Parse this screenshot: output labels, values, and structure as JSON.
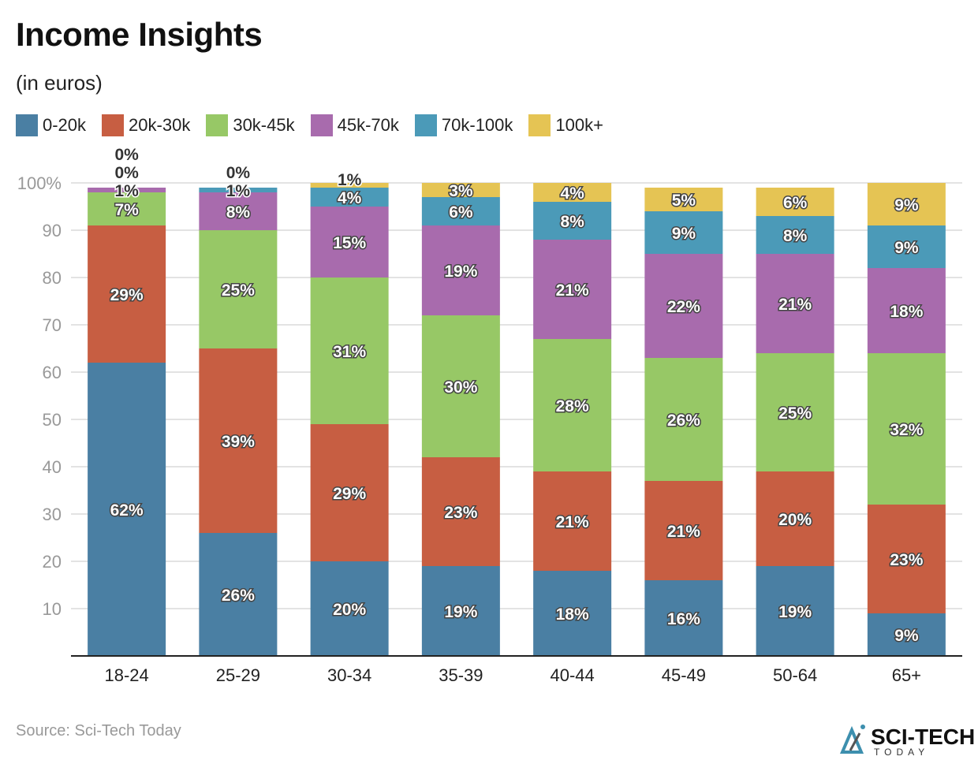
{
  "chart_data": {
    "type": "bar",
    "stacked": true,
    "title": "Income Insights",
    "subtitle": "(in euros)",
    "categories": [
      "18-24",
      "25-29",
      "30-34",
      "35-39",
      "40-44",
      "45-49",
      "50-64",
      "65+"
    ],
    "series": [
      {
        "name": "0-20k",
        "color": "#4a7fa3",
        "values": [
          62,
          26,
          20,
          19,
          18,
          16,
          19,
          9
        ],
        "labels": [
          "62%",
          "26%",
          "20%",
          "19%",
          "18%",
          "16%",
          "19%",
          "9%"
        ]
      },
      {
        "name": "20k-30k",
        "color": "#c75e42",
        "values": [
          29,
          39,
          29,
          23,
          21,
          21,
          20,
          23
        ],
        "labels": [
          "29%",
          "39%",
          "29%",
          "23%",
          "21%",
          "21%",
          "20%",
          "23%"
        ]
      },
      {
        "name": "30k-45k",
        "color": "#97c866",
        "values": [
          7,
          25,
          31,
          30,
          28,
          26,
          25,
          32
        ],
        "labels": [
          "7%",
          "25%",
          "31%",
          "30%",
          "28%",
          "26%",
          "25%",
          "32%"
        ]
      },
      {
        "name": "45k-70k",
        "color": "#a86bad",
        "values": [
          1,
          8,
          15,
          19,
          21,
          22,
          21,
          18
        ],
        "labels": [
          "1%",
          "8%",
          "15%",
          "19%",
          "21%",
          "22%",
          "21%",
          "18%"
        ]
      },
      {
        "name": "70k-100k",
        "color": "#4b9ab8",
        "values": [
          0,
          1,
          4,
          6,
          8,
          9,
          8,
          9
        ],
        "labels": [
          "0%",
          "1%",
          "4%",
          "6%",
          "8%",
          "9%",
          "8%",
          "9%"
        ]
      },
      {
        "name": "100k+",
        "color": "#e5c454",
        "values": [
          0,
          0,
          1,
          3,
          4,
          5,
          6,
          9
        ],
        "labels": [
          "0%",
          "0%",
          "1%",
          "3%",
          "4%",
          "5%",
          "6%",
          "9%"
        ]
      }
    ],
    "ylim": [
      0,
      100
    ],
    "yticks": [
      10,
      20,
      30,
      40,
      50,
      60,
      70,
      80,
      90
    ],
    "ytick_labels": [
      "10",
      "20",
      "30",
      "40",
      "50",
      "60",
      "70",
      "80",
      "90"
    ],
    "ytop_label": "100%",
    "grid": true,
    "legend_position": "top-left"
  },
  "source": "Source: Sci-Tech Today",
  "logo": {
    "name": "SCI-TECH",
    "tagline": "TODAY"
  }
}
